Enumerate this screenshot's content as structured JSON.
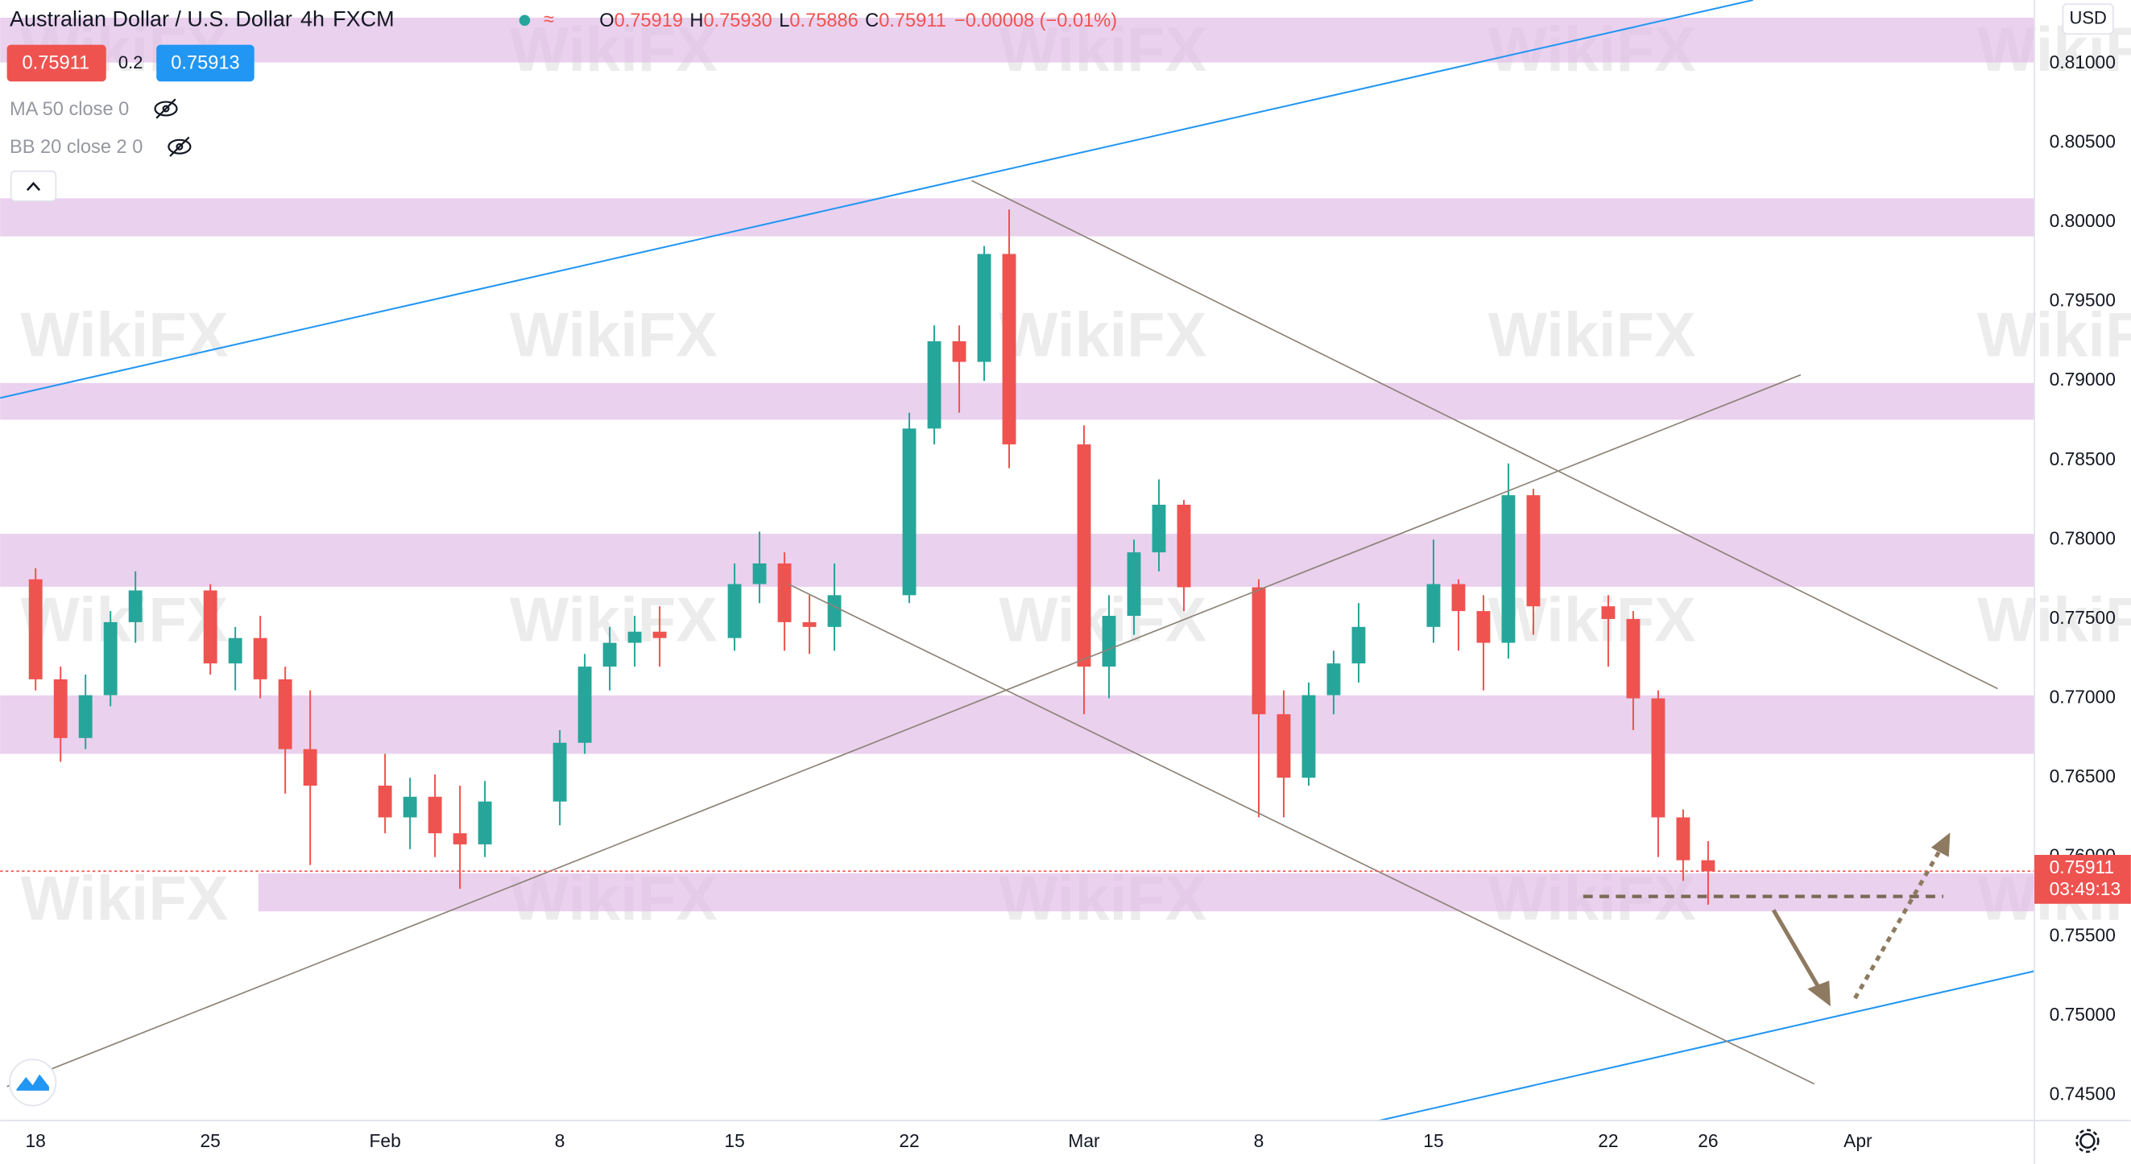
{
  "header": {
    "symbol": "Australian Dollar / U.S. Dollar",
    "interval": "4h",
    "exchange": "FXCM",
    "ohlc": [
      {
        "label": "O",
        "value": "0.75919"
      },
      {
        "label": "H",
        "value": "0.75930"
      },
      {
        "label": "L",
        "value": "0.75886"
      },
      {
        "label": "C",
        "value": "0.75911"
      }
    ],
    "change": "−0.00008 (−0.01%)"
  },
  "trade": {
    "bid": "0.75911",
    "spread": "0.2",
    "ask": "0.75913"
  },
  "indicators": [
    "MA 50 close 0",
    "BB 20 close 2 0"
  ],
  "currency": "USD",
  "watermark": "WikiFX",
  "chart_data": {
    "type": "candlestick",
    "x": [
      0,
      1,
      2,
      3,
      4,
      7,
      8,
      9,
      10,
      11,
      14,
      15,
      16,
      17,
      18,
      21,
      22,
      23,
      24,
      25,
      28,
      29,
      30,
      31,
      32,
      35,
      36,
      37,
      38,
      39,
      42,
      43,
      44,
      45,
      46,
      49,
      50,
      51,
      52,
      53,
      56,
      57,
      58,
      59,
      60,
      63,
      64,
      65,
      66,
      67
    ],
    "open": [
      0.7775,
      0.7712,
      0.7675,
      0.7702,
      0.7748,
      0.7768,
      0.7722,
      0.7738,
      0.7712,
      0.7668,
      0.7645,
      0.7625,
      0.7638,
      0.7615,
      0.7608,
      0.7635,
      0.7672,
      0.772,
      0.7735,
      0.7742,
      0.7738,
      0.7772,
      0.7785,
      0.7748,
      0.7745,
      0.7765,
      0.787,
      0.7925,
      0.7912,
      0.798,
      0.786,
      0.772,
      0.7752,
      0.7792,
      0.7822,
      0.777,
      0.769,
      0.765,
      0.7702,
      0.7722,
      0.7745,
      0.7772,
      0.7755,
      0.7735,
      0.7828,
      0.7758,
      0.775,
      0.77,
      0.7625,
      0.7598
    ],
    "high": [
      0.7782,
      0.772,
      0.7715,
      0.7755,
      0.778,
      0.7772,
      0.7745,
      0.7752,
      0.772,
      0.7705,
      0.7665,
      0.765,
      0.7652,
      0.7645,
      0.7648,
      0.768,
      0.7728,
      0.7745,
      0.7752,
      0.7758,
      0.7785,
      0.7805,
      0.7792,
      0.7765,
      0.7785,
      0.788,
      0.7935,
      0.7935,
      0.7985,
      0.8008,
      0.7872,
      0.7765,
      0.78,
      0.7838,
      0.7825,
      0.7775,
      0.7705,
      0.771,
      0.773,
      0.776,
      0.78,
      0.7775,
      0.7765,
      0.7848,
      0.7832,
      0.7765,
      0.7755,
      0.7705,
      0.763,
      0.761
    ],
    "low": [
      0.7705,
      0.766,
      0.7668,
      0.7695,
      0.7735,
      0.7715,
      0.7705,
      0.77,
      0.764,
      0.7595,
      0.7615,
      0.7605,
      0.76,
      0.758,
      0.76,
      0.762,
      0.7665,
      0.7705,
      0.772,
      0.772,
      0.773,
      0.776,
      0.773,
      0.7728,
      0.773,
      0.776,
      0.786,
      0.788,
      0.79,
      0.7845,
      0.769,
      0.77,
      0.774,
      0.778,
      0.7755,
      0.7625,
      0.7625,
      0.7645,
      0.769,
      0.771,
      0.7735,
      0.773,
      0.7705,
      0.7725,
      0.774,
      0.772,
      0.768,
      0.76,
      0.7585,
      0.757
    ],
    "close": [
      0.7712,
      0.7675,
      0.7702,
      0.7748,
      0.7768,
      0.7722,
      0.7738,
      0.7712,
      0.7668,
      0.7645,
      0.7625,
      0.7638,
      0.7615,
      0.7608,
      0.7635,
      0.7672,
      0.772,
      0.7735,
      0.7742,
      0.7738,
      0.7772,
      0.7785,
      0.7748,
      0.7745,
      0.7765,
      0.787,
      0.7925,
      0.7912,
      0.798,
      0.786,
      0.772,
      0.7752,
      0.7792,
      0.7822,
      0.777,
      0.769,
      0.765,
      0.7702,
      0.7722,
      0.7745,
      0.7772,
      0.7755,
      0.7735,
      0.7828,
      0.7758,
      0.775,
      0.77,
      0.7625,
      0.7598,
      0.7591
    ],
    "xlim": [
      -1.42,
      80.07
    ],
    "xticks": [
      {
        "value": 0,
        "label": "18"
      },
      {
        "value": 7,
        "label": "25"
      },
      {
        "value": 14,
        "label": "Feb"
      },
      {
        "value": 21,
        "label": "8"
      },
      {
        "value": 28,
        "label": "15"
      },
      {
        "value": 35,
        "label": "22"
      },
      {
        "value": 42,
        "label": "Mar"
      },
      {
        "value": 49,
        "label": "8"
      },
      {
        "value": 56,
        "label": "15"
      },
      {
        "value": 63,
        "label": "22"
      },
      {
        "value": 67,
        "label": "26"
      },
      {
        "value": 73,
        "label": "Apr"
      }
    ],
    "ylim": [
      0.7434,
      0.814
    ],
    "yticks": [
      {
        "value": 0.745,
        "label": "0.74500"
      },
      {
        "value": 0.75,
        "label": "0.75000"
      },
      {
        "value": 0.755,
        "label": "0.75500"
      },
      {
        "value": 0.76,
        "label": "0.76000"
      },
      {
        "value": 0.765,
        "label": "0.76500"
      },
      {
        "value": 0.77,
        "label": "0.77000"
      },
      {
        "value": 0.775,
        "label": "0.77500"
      },
      {
        "value": 0.78,
        "label": "0.78000"
      },
      {
        "value": 0.785,
        "label": "0.78500"
      },
      {
        "value": 0.79,
        "label": "0.79000"
      },
      {
        "value": 0.795,
        "label": "0.79500"
      },
      {
        "value": 0.8,
        "label": "0.80000"
      },
      {
        "value": 0.805,
        "label": "0.80500"
      },
      {
        "value": 0.81,
        "label": "0.81000"
      }
    ],
    "last_price": {
      "value": 0.75911,
      "label": "0.75911"
    },
    "countdown": "03:49:13",
    "colors": {
      "up": "#26a69a",
      "down": "#ef5350"
    }
  }
}
